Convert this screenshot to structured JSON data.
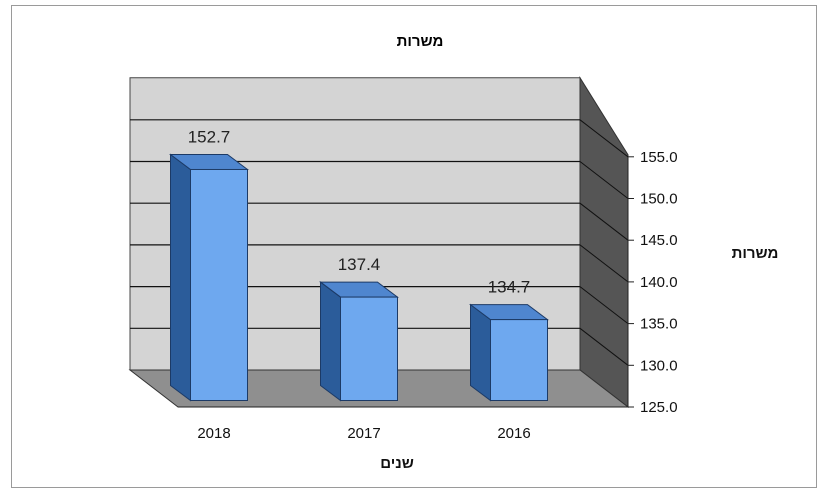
{
  "chart_data": {
    "type": "bar",
    "title": "משרות",
    "xlabel": "שנים",
    "ylabel": "משרות",
    "categories": [
      "2018",
      "2017",
      "2016"
    ],
    "values": [
      152.7,
      137.4,
      134.7
    ],
    "data_labels": [
      "152.7",
      "137.4",
      "134.7"
    ],
    "ylim": [
      125.0,
      155.0
    ],
    "yticks": [
      "125.0",
      "130.0",
      "135.0",
      "140.0",
      "145.0",
      "150.0",
      "155.0"
    ],
    "y_axis_side": "right",
    "grid": true,
    "style": "3d",
    "colors": {
      "bar_front": "#6ea8ef",
      "bar_side": "#2b5c9a",
      "bar_top": "#4f86cf",
      "back_wall": "#d4d4d4",
      "side_wall": "#555555",
      "floor": "#8f8f8f"
    }
  }
}
